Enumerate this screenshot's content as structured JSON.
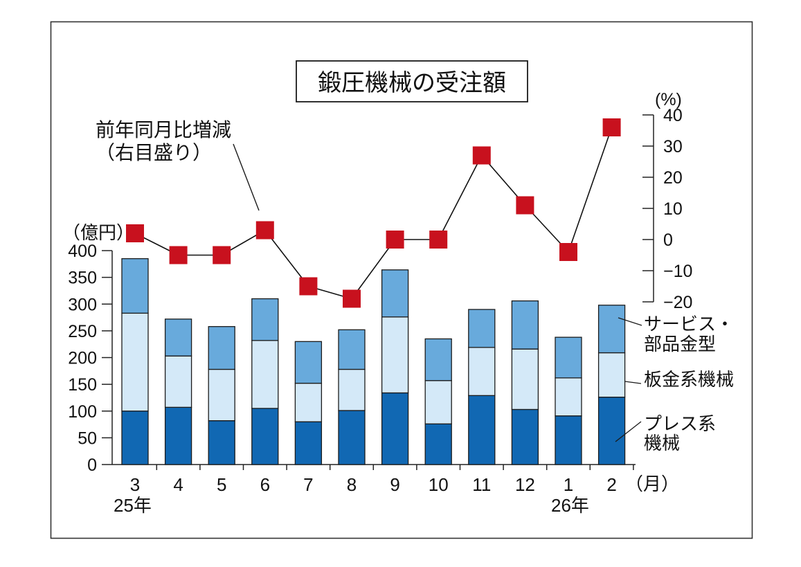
{
  "title": "鍛圧機械の受注額",
  "annotation": {
    "line1": "前年同月比増減",
    "line2": "（右目盛り）"
  },
  "units": {
    "left": "（億円）",
    "right": "(%)",
    "x": "（月）"
  },
  "era": {
    "start": "25年",
    "end": "26年"
  },
  "legend": {
    "service_line1": "サービス・",
    "service_line2": "部品金型",
    "sheet": "板金系機械",
    "press_line1": "プレス系",
    "press_line2": "機械"
  },
  "chart_data": {
    "type": "bar",
    "subtype": "stacked-bar-with-line-overlay",
    "title": "鍛圧機械の受注額",
    "categories": [
      "3",
      "4",
      "5",
      "6",
      "7",
      "8",
      "9",
      "10",
      "11",
      "12",
      "1",
      "2"
    ],
    "category_unit": "月",
    "year_groups": [
      {
        "label": "25年",
        "months": [
          "3",
          "4",
          "5",
          "6",
          "7",
          "8",
          "9",
          "10",
          "11",
          "12"
        ]
      },
      {
        "label": "26年",
        "months": [
          "1",
          "2"
        ]
      }
    ],
    "series": [
      {
        "name": "プレス系機械",
        "axis": "left",
        "color": "#1168b3",
        "values": [
          100,
          107,
          82,
          105,
          80,
          101,
          134,
          76,
          129,
          103,
          91,
          126
        ]
      },
      {
        "name": "板金系機械",
        "axis": "left",
        "color": "#d4e9f8",
        "values": [
          183,
          96,
          96,
          127,
          72,
          77,
          142,
          81,
          90,
          113,
          71,
          83
        ]
      },
      {
        "name": "サービス・部品金型",
        "axis": "left",
        "color": "#68aadc",
        "values": [
          102,
          69,
          80,
          78,
          78,
          74,
          88,
          78,
          71,
          90,
          76,
          89
        ]
      }
    ],
    "stacked_totals": [
      385,
      272,
      258,
      310,
      230,
      252,
      364,
      235,
      290,
      306,
      238,
      298
    ],
    "line_series": {
      "name": "前年同月比増減（右目盛り）",
      "axis": "right",
      "color": "#c8111e",
      "marker": "square",
      "values": [
        2,
        -5,
        -5,
        3,
        -15,
        -19,
        0,
        0,
        27,
        11,
        -4,
        36
      ]
    },
    "left_axis": {
      "unit": "億円",
      "min": 0,
      "max": 400,
      "step": 50
    },
    "right_axis": {
      "unit": "%",
      "min": -20,
      "max": 40,
      "step": 10
    },
    "grid": false,
    "legend_position": "right"
  }
}
